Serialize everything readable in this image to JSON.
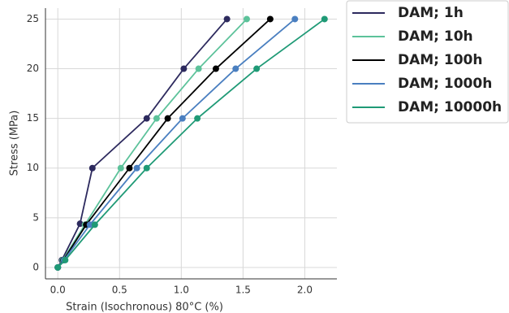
{
  "chart_data": {
    "type": "line",
    "xlabel": "Strain (Isochronous) 80°C (%)",
    "ylabel": "Stress (MPa)",
    "xlim": [
      -0.1,
      2.26
    ],
    "ylim": [
      -1.15,
      26.1
    ],
    "xticks": [
      {
        "value": 0,
        "label": "0.0"
      },
      0.5,
      {
        "value": 1,
        "label": "1.0"
      },
      1.5,
      {
        "value": 2,
        "label": "2.0"
      }
    ],
    "yticks": [
      0,
      5,
      10,
      15,
      20,
      25
    ],
    "grid": true,
    "legend": "outside right",
    "series": [
      {
        "name": "DAM; 1h",
        "color": "#2d2a5e",
        "x": [
          0,
          0.033,
          0.18,
          0.28,
          0.72,
          1.02,
          1.37
        ],
        "values": [
          0,
          0.74,
          4.4,
          10,
          15,
          20,
          25
        ]
      },
      {
        "name": "DAM; 10h",
        "color": "#5cc29a",
        "x": [
          0,
          0.04,
          0.22,
          0.51,
          0.8,
          1.14,
          1.53
        ],
        "values": [
          0,
          0.74,
          4.3,
          10,
          15,
          20,
          25
        ]
      },
      {
        "name": "DAM; 100h",
        "color": "#000000",
        "x": [
          0,
          0.046,
          0.23,
          0.58,
          0.89,
          1.28,
          1.72
        ],
        "values": [
          0,
          0.74,
          4.3,
          10,
          15,
          20,
          25
        ]
      },
      {
        "name": "DAM; 1000h",
        "color": "#4a7fc0",
        "x": [
          0,
          0.05,
          0.26,
          0.64,
          1.01,
          1.44,
          1.92
        ],
        "values": [
          0,
          0.74,
          4.3,
          10,
          15,
          20,
          25
        ]
      },
      {
        "name": "DAM; 10000h",
        "color": "#1f9a76",
        "x": [
          0,
          0.06,
          0.3,
          0.72,
          1.13,
          1.61,
          2.16
        ],
        "values": [
          0,
          0.74,
          4.3,
          10,
          15,
          20,
          25
        ]
      }
    ]
  }
}
